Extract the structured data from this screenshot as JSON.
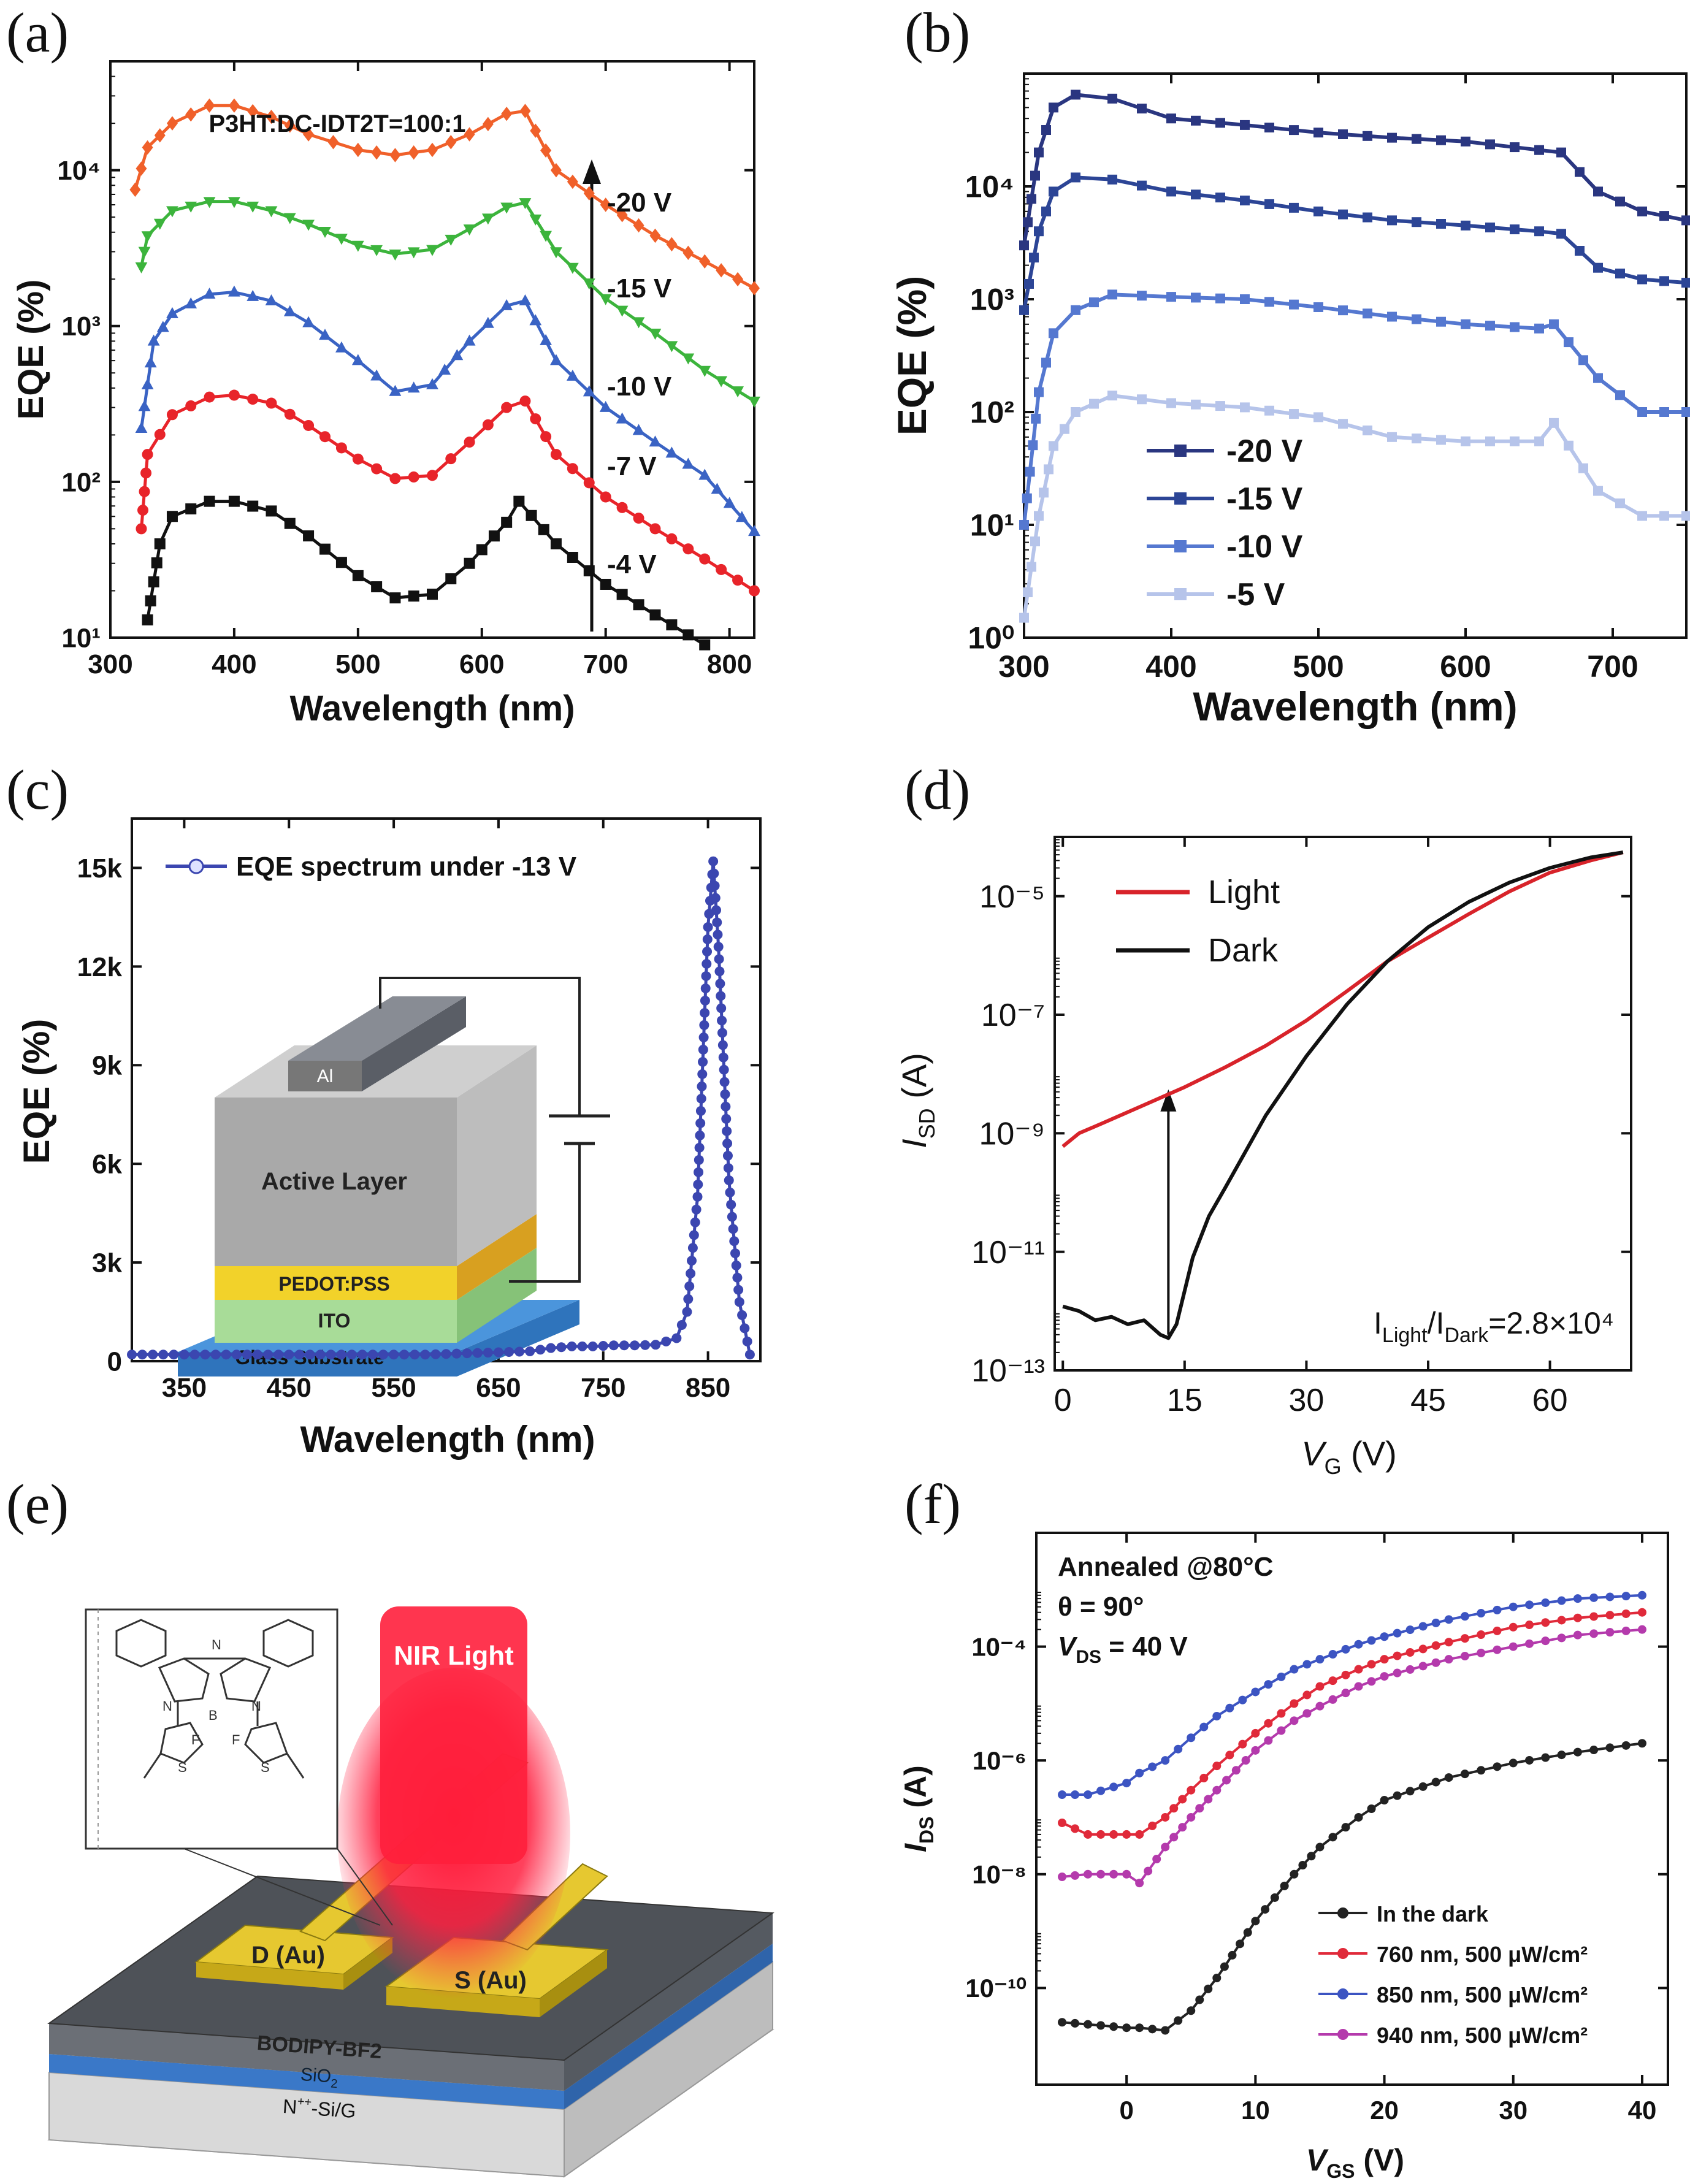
{
  "panel_labels": [
    "(a)",
    "(b)",
    "(c)",
    "(d)",
    "(e)",
    "(f)"
  ],
  "chart_data": [
    {
      "id": "a",
      "type": "line",
      "title": "P3HT:DC-IDT2T=100:1",
      "xlabel": "Wavelength (nm)",
      "ylabel": "EQE (%)",
      "ylog": true,
      "xlim": [
        300,
        820
      ],
      "ylim": [
        10,
        50000
      ],
      "xticks": [
        300,
        400,
        500,
        600,
        700,
        800
      ],
      "yticks": [
        10,
        100,
        1000,
        10000
      ],
      "yticklabels": [
        "10¹",
        "10²",
        "10³",
        "10⁴"
      ],
      "annotation_arrow": "increasing bias",
      "series": [
        {
          "name": "-20 V",
          "color": "#f0602a",
          "marker": "diamond",
          "x": [
            320,
            330,
            350,
            380,
            400,
            430,
            460,
            500,
            530,
            560,
            590,
            620,
            635,
            660,
            700,
            740,
            780,
            820
          ],
          "y": [
            7500,
            14000,
            20000,
            26000,
            26000,
            22000,
            17000,
            13500,
            12500,
            13500,
            17000,
            23000,
            24000,
            10000,
            6000,
            3800,
            2600,
            1750
          ]
        },
        {
          "name": "-15 V",
          "color": "#3cb43c",
          "marker": "tri-down",
          "x": [
            325,
            330,
            350,
            380,
            400,
            430,
            460,
            500,
            530,
            560,
            590,
            620,
            635,
            660,
            700,
            740,
            780,
            820
          ],
          "y": [
            2400,
            3800,
            5500,
            6300,
            6300,
            5500,
            4500,
            3300,
            2900,
            3100,
            4200,
            5800,
            6200,
            3000,
            1500,
            900,
            520,
            330
          ]
        },
        {
          "name": "-10 V",
          "color": "#3a63c4",
          "marker": "triangle",
          "x": [
            325,
            335,
            350,
            380,
            400,
            430,
            460,
            500,
            530,
            560,
            590,
            620,
            635,
            660,
            700,
            740,
            780,
            820
          ],
          "y": [
            220,
            800,
            1200,
            1600,
            1650,
            1450,
            1050,
            600,
            380,
            420,
            800,
            1350,
            1450,
            600,
            300,
            180,
            110,
            48
          ]
        },
        {
          "name": "-7 V",
          "color": "#e8242a",
          "marker": "circle",
          "x": [
            325,
            330,
            350,
            380,
            400,
            430,
            460,
            500,
            530,
            560,
            590,
            620,
            635,
            660,
            700,
            740,
            780,
            820
          ],
          "y": [
            50,
            150,
            270,
            350,
            360,
            320,
            230,
            140,
            105,
            110,
            180,
            300,
            330,
            150,
            80,
            50,
            32,
            20
          ]
        },
        {
          "name": "-4 V",
          "color": "#111111",
          "marker": "square",
          "x": [
            330,
            340,
            350,
            380,
            400,
            430,
            460,
            500,
            530,
            560,
            590,
            620,
            630,
            660,
            700,
            740,
            780
          ],
          "y": [
            13,
            40,
            60,
            75,
            75,
            65,
            45,
            25,
            18,
            19,
            30,
            55,
            75,
            40,
            22,
            14,
            9
          ]
        }
      ],
      "series_labels": [
        "-20 V",
        "-15 V",
        "-10 V",
        "-7 V",
        "-4 V"
      ]
    },
    {
      "id": "b",
      "type": "line",
      "xlabel": "Wavelength (nm)",
      "ylabel": "EQE (%)",
      "ylog": true,
      "xlim": [
        300,
        750
      ],
      "ylim": [
        1,
        100000
      ],
      "xticks": [
        300,
        400,
        500,
        600,
        700
      ],
      "yticks": [
        1,
        10,
        100,
        1000,
        10000
      ],
      "yticklabels": [
        "10⁰",
        "10¹",
        "10²",
        "10³",
        "10⁴"
      ],
      "legend": "lower-left",
      "series": [
        {
          "name": "-20 V",
          "color": "#2a3680",
          "marker": "square",
          "x": [
            300,
            310,
            320,
            335,
            360,
            400,
            450,
            500,
            550,
            600,
            650,
            665,
            690,
            720,
            750
          ],
          "y": [
            3000,
            20000,
            50000,
            65000,
            60000,
            40000,
            35000,
            30000,
            27000,
            25000,
            21000,
            20000,
            9000,
            6000,
            5000
          ]
        },
        {
          "name": "-15 V",
          "color": "#2c4596",
          "marker": "square",
          "x": [
            300,
            310,
            320,
            335,
            360,
            400,
            450,
            500,
            550,
            600,
            650,
            665,
            690,
            720,
            750
          ],
          "y": [
            800,
            4000,
            9000,
            12000,
            11500,
            9000,
            7500,
            6000,
            5000,
            4500,
            4000,
            3800,
            1900,
            1500,
            1400
          ]
        },
        {
          "name": "-10 V",
          "color": "#5578d0",
          "marker": "square",
          "x": [
            300,
            310,
            320,
            335,
            360,
            400,
            450,
            500,
            550,
            600,
            650,
            660,
            690,
            720,
            750
          ],
          "y": [
            10,
            150,
            500,
            800,
            1100,
            1050,
            1000,
            850,
            700,
            600,
            550,
            600,
            200,
            100,
            100
          ]
        },
        {
          "name": "-5 V",
          "color": "#b6c4ea",
          "marker": "square",
          "x": [
            300,
            310,
            320,
            335,
            360,
            400,
            450,
            500,
            550,
            600,
            650,
            660,
            690,
            720,
            750
          ],
          "y": [
            1.5,
            12,
            50,
            100,
            140,
            120,
            110,
            90,
            60,
            55,
            55,
            80,
            20,
            12,
            12
          ]
        }
      ]
    },
    {
      "id": "c",
      "type": "line",
      "xlabel": "Wavelength (nm)",
      "ylabel": "EQE (%)",
      "xlim": [
        300,
        900
      ],
      "ylim": [
        0,
        16500
      ],
      "xticks": [
        350,
        450,
        550,
        650,
        750,
        850
      ],
      "yticks": [
        0,
        3000,
        6000,
        9000,
        12000,
        15000
      ],
      "yticklabels": [
        "0",
        "3k",
        "6k",
        "9k",
        "12k",
        "15k"
      ],
      "legend": "top-left",
      "series": [
        {
          "name": "EQE spectrum under -13 V",
          "color": "#3b46b0",
          "marker": "circle",
          "x": [
            300,
            320,
            340,
            360,
            380,
            400,
            420,
            440,
            460,
            480,
            500,
            520,
            540,
            560,
            580,
            600,
            620,
            640,
            660,
            680,
            700,
            720,
            740,
            760,
            780,
            800,
            820,
            830,
            840,
            850,
            855,
            860,
            870,
            880,
            890
          ],
          "y": [
            200,
            200,
            200,
            200,
            200,
            200,
            200,
            200,
            200,
            200,
            200,
            200,
            200,
            200,
            200,
            220,
            240,
            260,
            280,
            300,
            400,
            450,
            450,
            480,
            480,
            500,
            700,
            1500,
            5000,
            13200,
            15200,
            12600,
            5500,
            1800,
            200
          ]
        }
      ],
      "inset": {
        "layers": [
          "Al",
          "Active Layer",
          "PEDOT:PSS",
          "ITO",
          "Glass Substrate"
        ]
      }
    },
    {
      "id": "d",
      "type": "line",
      "xlabel": "V",
      "xlabel_sub": "G",
      "xlabel_unit": " (V)",
      "ylabel": "I",
      "ylabel_sub": "SD",
      "ylabel_unit": " (A)",
      "ylog": true,
      "xlim": [
        -1,
        70
      ],
      "ylim": [
        1e-13,
        0.0001
      ],
      "xticks": [
        0,
        15,
        30,
        45,
        60
      ],
      "yticks": [
        1e-13,
        1e-11,
        1e-09,
        1e-07,
        1e-05
      ],
      "yticklabels": [
        "10⁻¹³",
        "10⁻¹¹",
        "10⁻⁹",
        "10⁻⁷",
        "10⁻⁵"
      ],
      "legend": "top-left",
      "annotation": {
        "text": "I",
        "sub1": "Light",
        "mid": "/I",
        "sub2": "Dark",
        "tail": "=2.8×10⁴"
      },
      "series": [
        {
          "name": "Light",
          "color": "#d8232a",
          "x": [
            0,
            2,
            5,
            10,
            15,
            20,
            25,
            30,
            35,
            40,
            45,
            50,
            55,
            60,
            65,
            69
          ],
          "y": [
            6e-10,
            1e-09,
            1.5e-09,
            3e-09,
            6e-09,
            1.3e-08,
            3e-08,
            8e-08,
            2.5e-07,
            8e-07,
            2e-06,
            5e-06,
            1.2e-05,
            2.5e-05,
            4e-05,
            5.5e-05
          ]
        },
        {
          "name": "Dark",
          "color": "#111111",
          "x": [
            0,
            2,
            4,
            6,
            8,
            10,
            12,
            13,
            14,
            16,
            18,
            20,
            25,
            30,
            35,
            40,
            45,
            50,
            55,
            60,
            65,
            69
          ],
          "y": [
            1.2e-12,
            1e-12,
            7e-13,
            8e-13,
            6e-13,
            7e-13,
            4e-13,
            3.5e-13,
            6e-13,
            8e-12,
            4e-11,
            1.2e-10,
            2e-09,
            2e-08,
            1.5e-07,
            8e-07,
            3e-06,
            8e-06,
            1.7e-05,
            3e-05,
            4.5e-05,
            5.5e-05
          ]
        }
      ]
    },
    {
      "id": "f",
      "type": "line",
      "xlabel": "V",
      "xlabel_sub": "GS",
      "xlabel_unit": " (V)",
      "ylabel": "I",
      "ylabel_sub": "DS",
      "ylabel_unit": " (A)",
      "ylog": true,
      "xlim": [
        -7,
        42
      ],
      "ylim": [
        2e-12,
        0.01
      ],
      "xticks": [
        0,
        10,
        20,
        30,
        40
      ],
      "yticks": [
        1e-10,
        1e-08,
        1e-06,
        0.0001
      ],
      "yticklabels": [
        "10⁻¹⁰",
        "10⁻⁸",
        "10⁻⁶",
        "10⁻⁴"
      ],
      "legend": "lower-right",
      "annotation_lines": [
        "Annealed @80°C",
        "θ = 90°",
        "V",
        "DS",
        " = 40 V"
      ],
      "series": [
        {
          "name": "In the dark",
          "color": "#222222",
          "x": [
            -5,
            -2,
            0,
            1,
            3,
            5,
            7,
            10,
            13,
            15,
            18,
            20,
            25,
            30,
            35,
            40
          ],
          "y": [
            2.5e-11,
            2.2e-11,
            2e-11,
            2e-11,
            1.8e-11,
            4e-11,
            1.5e-10,
            1.5e-09,
            1e-08,
            3e-08,
            1e-07,
            2e-07,
            5e-07,
            9e-07,
            1.4e-06,
            2e-06
          ]
        },
        {
          "name": "760 nm, 500 μW/cm²",
          "color": "#e02a3a",
          "x": [
            -5,
            -3,
            0,
            1,
            3,
            5,
            7,
            10,
            13,
            15,
            18,
            20,
            25,
            30,
            35,
            40
          ],
          "y": [
            8e-08,
            5e-08,
            5e-08,
            5e-08,
            1e-07,
            3e-07,
            8e-07,
            3e-06,
            1e-05,
            2e-05,
            4e-05,
            6e-05,
            0.00012,
            0.00022,
            0.00032,
            0.0004
          ]
        },
        {
          "name": "850 nm, 500 μW/cm²",
          "color": "#3c54c2",
          "x": [
            -5,
            -3,
            0,
            1,
            3,
            5,
            7,
            10,
            13,
            15,
            18,
            20,
            25,
            30,
            35,
            40
          ],
          "y": [
            2.5e-07,
            2.5e-07,
            4e-07,
            6e-07,
            1e-06,
            2.5e-06,
            6e-06,
            1.6e-05,
            4e-05,
            6e-05,
            0.00011,
            0.00015,
            0.0003,
            0.0005,
            0.0007,
            0.0008
          ]
        },
        {
          "name": "940 nm, 500 μW/cm²",
          "color": "#b43aac",
          "x": [
            -5,
            -3,
            0,
            1,
            3,
            5,
            7,
            10,
            13,
            15,
            18,
            20,
            25,
            30,
            35,
            40
          ],
          "y": [
            9e-09,
            1e-08,
            1e-08,
            7e-09,
            3e-08,
            1e-07,
            3e-07,
            1.5e-06,
            5e-06,
            9e-06,
            2e-05,
            3e-05,
            6e-05,
            0.0001,
            0.00016,
            0.0002
          ]
        }
      ]
    }
  ],
  "schematic_e": {
    "light_label": "NIR Light",
    "drain_label": "D (Au)",
    "source_label": "S (Au)",
    "layer1": "BODIPY-BF2",
    "layer2": "SiO",
    "layer2_sub": "2",
    "layer3": "N",
    "layer3_sup": "++",
    "layer3_tail": "-Si/G"
  }
}
